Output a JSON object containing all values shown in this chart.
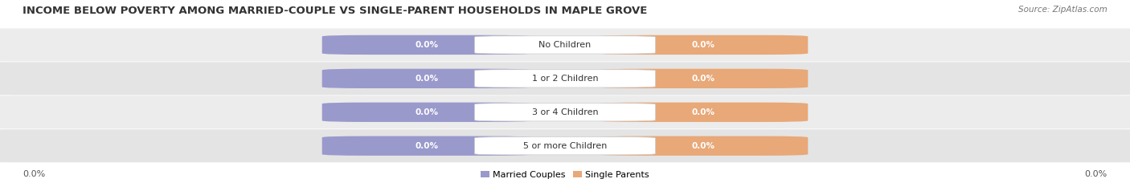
{
  "title": "INCOME BELOW POVERTY AMONG MARRIED-COUPLE VS SINGLE-PARENT HOUSEHOLDS IN MAPLE GROVE",
  "source": "Source: ZipAtlas.com",
  "categories": [
    "No Children",
    "1 or 2 Children",
    "3 or 4 Children",
    "5 or more Children"
  ],
  "married_values": [
    "0.0%",
    "0.0%",
    "0.0%",
    "0.0%"
  ],
  "single_values": [
    "0.0%",
    "0.0%",
    "0.0%",
    "0.0%"
  ],
  "married_color": "#9999cc",
  "single_color": "#e8a878",
  "row_colors": [
    "#ececec",
    "#e4e4e4",
    "#ececec",
    "#e4e4e4"
  ],
  "label_bg_color": "#f8f8f8",
  "axis_label_left": "0.0%",
  "axis_label_right": "0.0%",
  "legend_married": "Married Couples",
  "legend_single": "Single Parents",
  "title_fontsize": 9.5,
  "source_fontsize": 7.5,
  "bar_label_fontsize": 7.5,
  "cat_label_fontsize": 8,
  "legend_fontsize": 8,
  "figsize": [
    14.06,
    2.33
  ],
  "dpi": 100
}
